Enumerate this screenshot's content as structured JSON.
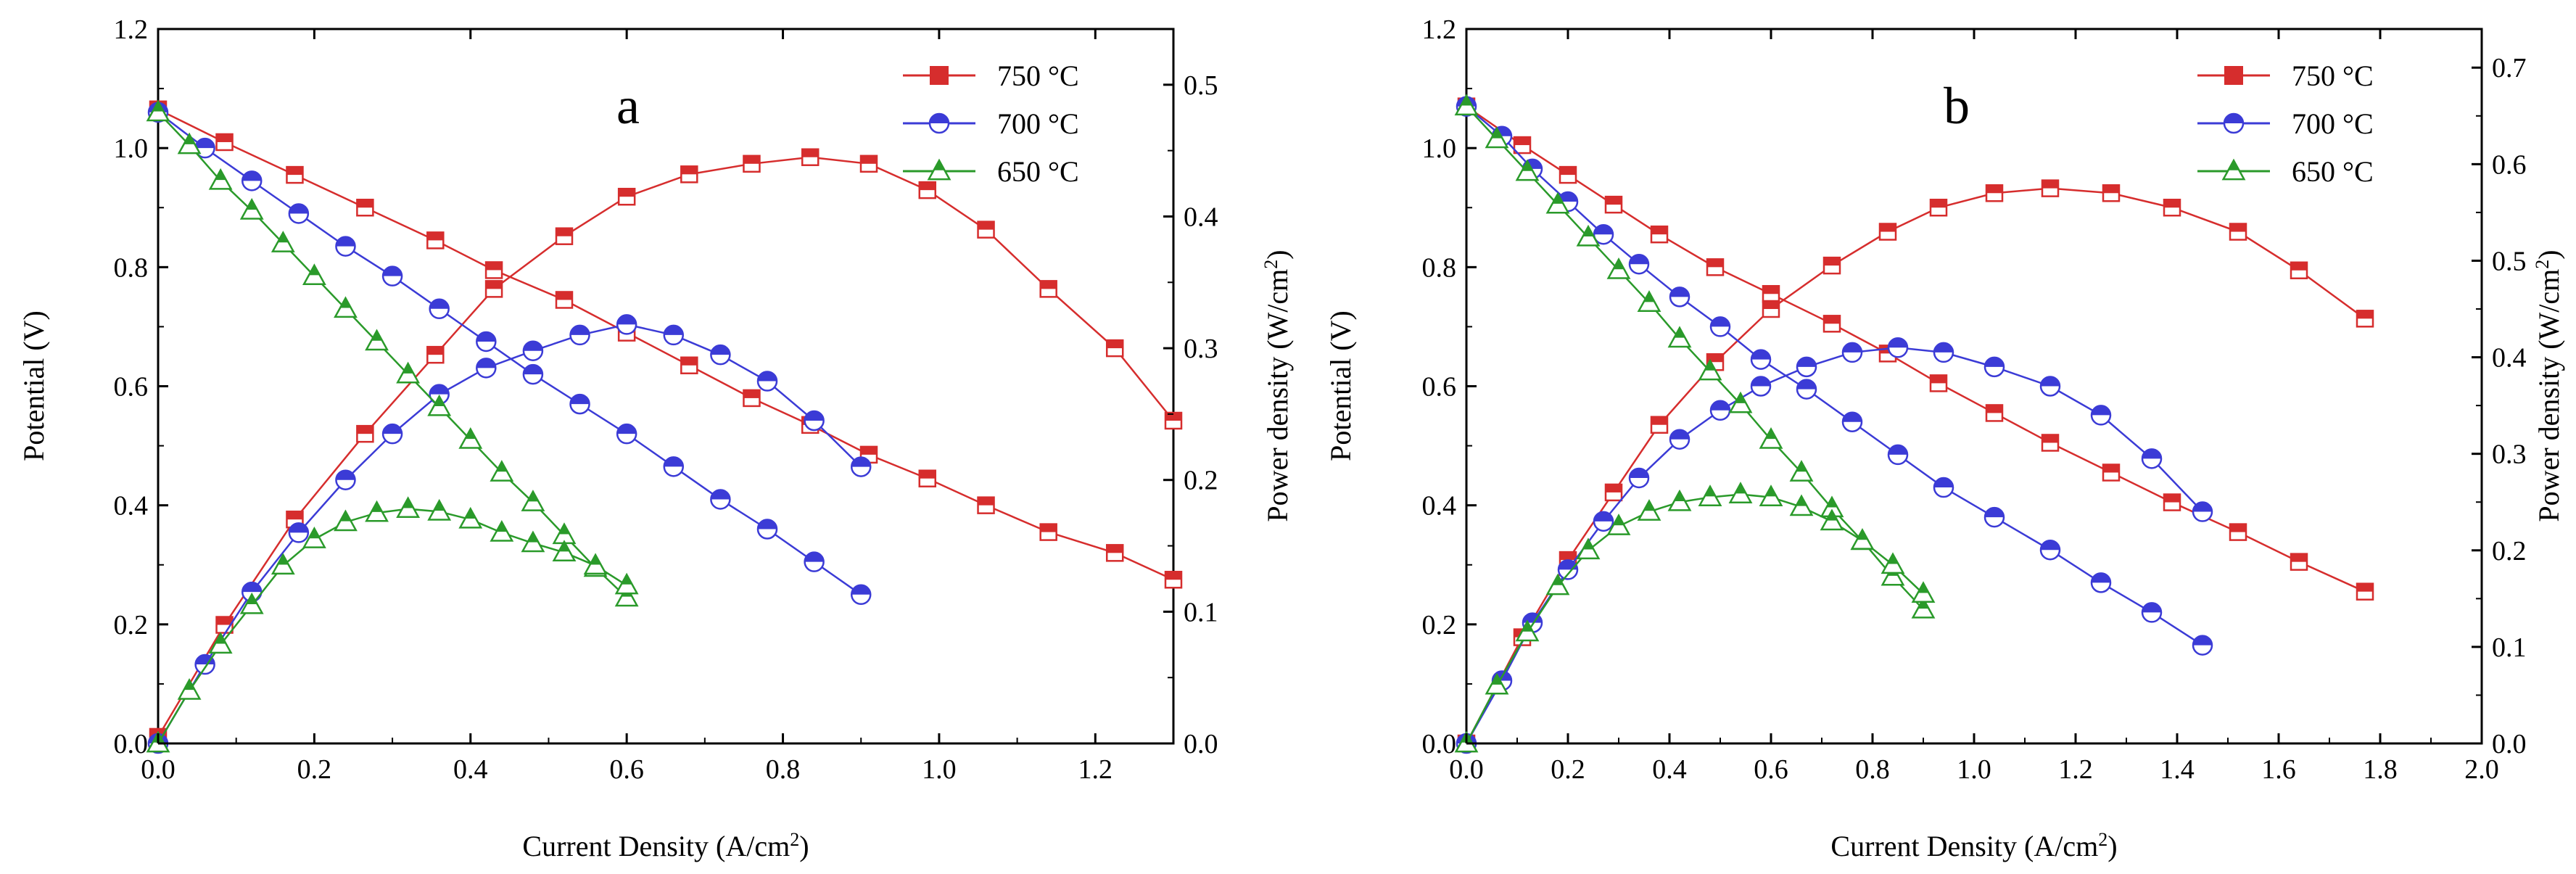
{
  "colors": {
    "c750": "#d62d2d",
    "c750_fill": "#e8323a",
    "c700": "#3b3bd6",
    "c700_fill": "#2424c8",
    "c650": "#2a9a2a",
    "c650_fill": "#1f8f1f",
    "axis": "#000000",
    "background": "#ffffff"
  },
  "chart_data": [
    {
      "type": "line",
      "panel_label": "a",
      "xlabel_main": "Current Density (A/cm",
      "xlabel_sup": "2",
      "xlabel_end": ")",
      "ylabel_left": "Potential (V)",
      "ylabel_right_main": "Power density (W/cm",
      "ylabel_right_sup": "2",
      "ylabel_right_end": ")",
      "xlim": [
        0,
        1.3
      ],
      "ylim_left": [
        0,
        1.2
      ],
      "ylim_right": [
        0,
        0.5423
      ],
      "x_ticks": [
        0.0,
        0.2,
        0.4,
        0.6,
        0.8,
        1.0,
        1.2
      ],
      "x_tick_labels": [
        "0.0",
        "0.2",
        "0.4",
        "0.6",
        "0.8",
        "1.0",
        "1.2"
      ],
      "y_left_ticks": [
        0.0,
        0.2,
        0.4,
        0.6,
        0.8,
        1.0,
        1.2
      ],
      "y_left_tick_labels": [
        "0.0",
        "0.2",
        "0.4",
        "0.6",
        "0.8",
        "1.0",
        "1.2"
      ],
      "y_right_ticks": [
        0.0,
        0.1,
        0.2,
        0.3,
        0.4,
        0.5
      ],
      "y_right_tick_labels": [
        "0.0",
        "0.1",
        "0.2",
        "0.3",
        "0.4",
        "0.5"
      ],
      "legend": [
        "750 °C",
        "700 °C",
        "650 °C"
      ],
      "series": [
        {
          "name": "750 °C",
          "color_key": "c750",
          "marker": "square",
          "x": [
            0.0,
            0.085,
            0.175,
            0.265,
            0.355,
            0.43,
            0.52,
            0.6,
            0.68,
            0.76,
            0.835,
            0.91,
            0.985,
            1.06,
            1.14,
            1.225,
            1.3
          ],
          "voltage": [
            1.065,
            1.01,
            0.955,
            0.9,
            0.845,
            0.795,
            0.745,
            0.69,
            0.635,
            0.58,
            0.535,
            0.485,
            0.445,
            0.4,
            0.355,
            0.32,
            0.275
          ],
          "power": [
            0.005,
            0.09,
            0.17,
            0.235,
            0.295,
            0.345,
            0.385,
            0.415,
            0.432,
            0.44,
            0.445,
            0.44,
            0.42,
            0.39,
            0.345,
            0.3,
            0.245
          ]
        },
        {
          "name": "700 °C",
          "color_key": "c700",
          "marker": "circle-half",
          "x": [
            0.0,
            0.06,
            0.12,
            0.18,
            0.24,
            0.3,
            0.36,
            0.42,
            0.48,
            0.54,
            0.6,
            0.66,
            0.72,
            0.78,
            0.84,
            0.9
          ],
          "voltage": [
            1.06,
            1.0,
            0.945,
            0.89,
            0.835,
            0.785,
            0.73,
            0.675,
            0.62,
            0.57,
            0.52,
            0.465,
            0.41,
            0.36,
            0.305,
            0.25
          ],
          "power": [
            0.0,
            0.06,
            0.115,
            0.16,
            0.2,
            0.235,
            0.265,
            0.285,
            0.298,
            0.31,
            0.318,
            0.31,
            0.295,
            0.275,
            0.245,
            0.21
          ]
        },
        {
          "name": "650 °C",
          "color_key": "c650",
          "marker": "triangle",
          "x": [
            0.0,
            0.04,
            0.08,
            0.12,
            0.16,
            0.2,
            0.24,
            0.28,
            0.32,
            0.36,
            0.4,
            0.44,
            0.48,
            0.52,
            0.56,
            0.6
          ],
          "voltage": [
            1.06,
            1.005,
            0.945,
            0.895,
            0.84,
            0.785,
            0.73,
            0.675,
            0.62,
            0.565,
            0.51,
            0.455,
            0.405,
            0.35,
            0.295,
            0.245
          ],
          "power": [
            0.0,
            0.04,
            0.075,
            0.105,
            0.135,
            0.155,
            0.168,
            0.175,
            0.178,
            0.176,
            0.17,
            0.16,
            0.152,
            0.145,
            0.135,
            0.12
          ]
        }
      ]
    },
    {
      "type": "line",
      "panel_label": "b",
      "xlabel_main": "Current Density (A/cm",
      "xlabel_sup": "2",
      "xlabel_end": ")",
      "ylabel_left": "Potential (V)",
      "ylabel_right_main": "Power density (W/cm",
      "ylabel_right_sup": "2",
      "ylabel_right_end": ")",
      "xlim": [
        0,
        2.0
      ],
      "ylim_left": [
        0,
        1.2
      ],
      "ylim_right": [
        0,
        0.74
      ],
      "x_ticks": [
        0.0,
        0.2,
        0.4,
        0.6,
        0.8,
        1.0,
        1.2,
        1.4,
        1.6,
        1.8,
        2.0
      ],
      "x_tick_labels": [
        "0.0",
        "0.2",
        "0.4",
        "0.6",
        "0.8",
        "1.0",
        "1.2",
        "1.4",
        "1.6",
        "1.8",
        "2.0"
      ],
      "y_left_ticks": [
        0.0,
        0.2,
        0.4,
        0.6,
        0.8,
        1.0,
        1.2
      ],
      "y_left_tick_labels": [
        "0.0",
        "0.2",
        "0.4",
        "0.6",
        "0.8",
        "1.0",
        "1.2"
      ],
      "y_right_ticks": [
        0.0,
        0.1,
        0.2,
        0.3,
        0.4,
        0.5,
        0.6,
        0.7
      ],
      "y_right_tick_labels": [
        "0.0",
        "0.1",
        "0.2",
        "0.3",
        "0.4",
        "0.5",
        "0.6",
        "0.7"
      ],
      "legend": [
        "750 °C",
        "700 °C",
        "650 °C"
      ],
      "series": [
        {
          "name": "750 °C",
          "color_key": "c750",
          "marker": "square",
          "x": [
            0.0,
            0.11,
            0.2,
            0.29,
            0.38,
            0.49,
            0.6,
            0.72,
            0.83,
            0.93,
            1.04,
            1.15,
            1.27,
            1.39,
            1.52,
            1.64,
            1.77
          ],
          "voltage": [
            1.07,
            1.005,
            0.955,
            0.905,
            0.855,
            0.8,
            0.755,
            0.705,
            0.655,
            0.605,
            0.555,
            0.505,
            0.455,
            0.405,
            0.355,
            0.305,
            0.255
          ],
          "power": [
            0.0,
            0.11,
            0.19,
            0.26,
            0.33,
            0.395,
            0.45,
            0.495,
            0.53,
            0.555,
            0.57,
            0.575,
            0.57,
            0.555,
            0.53,
            0.49,
            0.44
          ]
        },
        {
          "name": "700 °C",
          "color_key": "c700",
          "marker": "circle-half",
          "x": [
            0.0,
            0.07,
            0.13,
            0.2,
            0.27,
            0.34,
            0.42,
            0.5,
            0.58,
            0.67,
            0.76,
            0.85,
            0.94,
            1.04,
            1.15,
            1.25,
            1.35,
            1.45
          ],
          "voltage": [
            1.07,
            1.02,
            0.965,
            0.91,
            0.855,
            0.805,
            0.75,
            0.7,
            0.645,
            0.595,
            0.54,
            0.485,
            0.43,
            0.38,
            0.325,
            0.27,
            0.22,
            0.165
          ],
          "power": [
            0.0,
            0.065,
            0.125,
            0.18,
            0.23,
            0.275,
            0.315,
            0.345,
            0.37,
            0.39,
            0.405,
            0.41,
            0.405,
            0.39,
            0.37,
            0.34,
            0.295,
            0.24
          ]
        },
        {
          "name": "650 °C",
          "color_key": "c650",
          "marker": "triangle",
          "x": [
            0.0,
            0.06,
            0.12,
            0.18,
            0.24,
            0.3,
            0.36,
            0.42,
            0.48,
            0.54,
            0.6,
            0.66,
            0.72,
            0.78,
            0.84,
            0.9
          ],
          "voltage": [
            1.07,
            1.015,
            0.96,
            0.905,
            0.85,
            0.795,
            0.74,
            0.68,
            0.625,
            0.57,
            0.51,
            0.455,
            0.395,
            0.34,
            0.28,
            0.225
          ],
          "power": [
            0.0,
            0.06,
            0.115,
            0.163,
            0.2,
            0.225,
            0.24,
            0.25,
            0.255,
            0.258,
            0.255,
            0.245,
            0.23,
            0.21,
            0.185,
            0.155
          ]
        }
      ]
    }
  ]
}
